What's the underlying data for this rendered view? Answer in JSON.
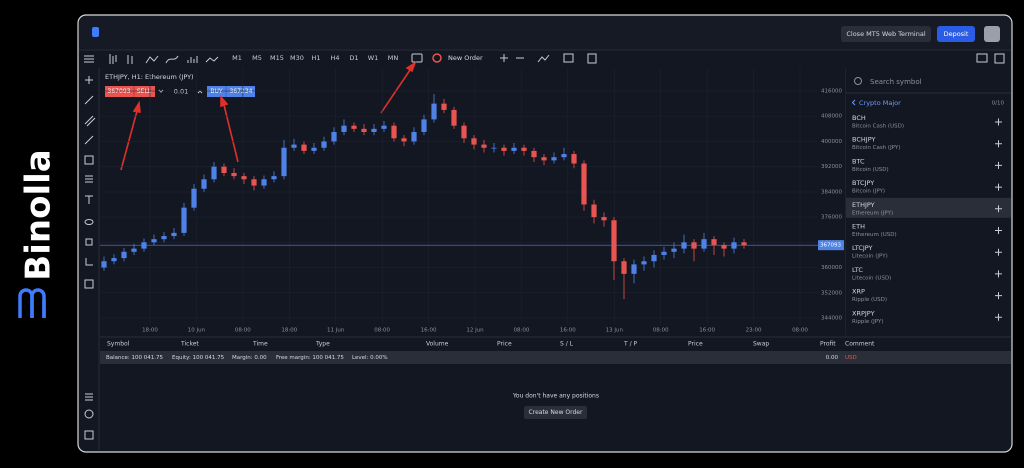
{
  "brand": "Binolla",
  "topbar": {
    "close_button": "Close MT5 Web Terminal",
    "deposit_button": "Deposit"
  },
  "toolbar": {
    "timeframes": [
      "M1",
      "M5",
      "M15",
      "M30",
      "H1",
      "H4",
      "D1",
      "W1",
      "MN"
    ],
    "new_order": "New Order"
  },
  "chart": {
    "type": "candlestick",
    "title": "ETHJPY, H1: Ethereum (JPY)",
    "bid": 367093,
    "ask": 367234,
    "sell_label": "SELL",
    "buy_label": "BUY",
    "volume": 0.01,
    "up_color": "#4f82e6",
    "down_color": "#ea5450",
    "ylim": [
      340000,
      420000
    ],
    "yticks": [
      344000,
      352000,
      360000,
      368000,
      376000,
      384000,
      392000,
      400000,
      408000,
      416000
    ],
    "x_labels": [
      "18:00",
      "10 Jun",
      "08:00",
      "18:00",
      "11 Jun",
      "08:00",
      "16:00",
      "12 Jun",
      "08:00",
      "16:00",
      "13 Jun",
      "08:00",
      "16:00",
      "23:00",
      "08:00"
    ],
    "grid": true,
    "candles": [
      [
        360000,
        363500,
        359000,
        362000
      ],
      [
        362000,
        364200,
        361000,
        363000
      ],
      [
        363000,
        366200,
        362000,
        365000
      ],
      [
        365000,
        367500,
        364000,
        366000
      ],
      [
        366000,
        369200,
        365000,
        368000
      ],
      [
        368000,
        370500,
        367000,
        369000
      ],
      [
        369000,
        371200,
        368000,
        370000
      ],
      [
        370000,
        372500,
        369000,
        371000
      ],
      [
        371000,
        380500,
        370000,
        379000
      ],
      [
        379000,
        386500,
        378000,
        385000
      ],
      [
        385000,
        389500,
        384000,
        388000
      ],
      [
        388000,
        393500,
        387000,
        392000
      ],
      [
        392000,
        393000,
        389000,
        390000
      ],
      [
        390000,
        391500,
        388000,
        389000
      ],
      [
        389000,
        390000,
        386500,
        388000
      ],
      [
        388000,
        389000,
        384500,
        386000
      ],
      [
        386000,
        389200,
        385000,
        388000
      ],
      [
        388000,
        390500,
        387000,
        389000
      ],
      [
        389000,
        400500,
        388000,
        398000
      ],
      [
        398000,
        400800,
        397000,
        399000
      ],
      [
        399000,
        400000,
        396000,
        397000
      ],
      [
        397000,
        399500,
        396000,
        398000
      ],
      [
        398000,
        401500,
        397000,
        400000
      ],
      [
        400000,
        404500,
        399000,
        403000
      ],
      [
        403000,
        407000,
        402000,
        405000
      ],
      [
        405000,
        406000,
        403000,
        404000
      ],
      [
        404000,
        405500,
        402000,
        403000
      ],
      [
        403000,
        405500,
        402000,
        404000
      ],
      [
        404000,
        406500,
        403000,
        405000
      ],
      [
        405000,
        406000,
        400000,
        401000
      ],
      [
        401000,
        402000,
        398500,
        400000
      ],
      [
        400000,
        404500,
        399000,
        403000
      ],
      [
        403000,
        408500,
        402000,
        407000
      ],
      [
        407000,
        415000,
        406000,
        412000
      ],
      [
        412000,
        413500,
        409000,
        410000
      ],
      [
        410000,
        411000,
        404000,
        405000
      ],
      [
        405000,
        406000,
        399500,
        401000
      ],
      [
        401000,
        402000,
        397500,
        399000
      ],
      [
        399000,
        400500,
        396500,
        398000
      ],
      [
        398000,
        399500,
        396500,
        398000
      ],
      [
        398000,
        399000,
        395500,
        397000
      ],
      [
        397000,
        399500,
        396000,
        398000
      ],
      [
        398000,
        399000,
        395500,
        397000
      ],
      [
        397000,
        398000,
        393500,
        395000
      ],
      [
        395000,
        396000,
        392500,
        394000
      ],
      [
        394000,
        396500,
        393000,
        395000
      ],
      [
        395000,
        398000,
        394000,
        396000
      ],
      [
        396000,
        397000,
        391500,
        393000
      ],
      [
        393000,
        394000,
        378000,
        380000
      ],
      [
        380000,
        381500,
        374000,
        376000
      ],
      [
        376000,
        377500,
        373000,
        375000
      ],
      [
        375000,
        376000,
        356000,
        362000
      ],
      [
        362000,
        363000,
        350000,
        358000
      ],
      [
        358000,
        362500,
        355000,
        361000
      ],
      [
        361000,
        363500,
        359000,
        362000
      ],
      [
        362000,
        365500,
        360000,
        364000
      ],
      [
        364000,
        366500,
        362500,
        365000
      ],
      [
        365000,
        368000,
        363000,
        366000
      ],
      [
        366000,
        370500,
        364500,
        368000
      ],
      [
        368000,
        369000,
        362000,
        366000
      ],
      [
        366000,
        371000,
        365000,
        369000
      ],
      [
        369000,
        370000,
        364000,
        367000
      ],
      [
        367000,
        368000,
        363500,
        366000
      ],
      [
        366000,
        369500,
        364500,
        368000
      ],
      [
        368000,
        369000,
        366000,
        367093
      ]
    ]
  },
  "symbols": {
    "search_placeholder": "Search symbol",
    "group": "Crypto Major",
    "count": "0/10",
    "items": [
      {
        "symbol": "BCH",
        "description": "Bitcoin Cash (USD)"
      },
      {
        "symbol": "BCHJPY",
        "description": "Bitcoin Cash (JPY)"
      },
      {
        "symbol": "BTC",
        "description": "Bitcoin (USD)"
      },
      {
        "symbol": "BTCJPY",
        "description": "Bitcoin (JPY)"
      },
      {
        "symbol": "ETHJPY",
        "description": "Ethereum (JPY)"
      },
      {
        "symbol": "ETH",
        "description": "Ethereum (USD)"
      },
      {
        "symbol": "LTCJPY",
        "description": "Litecoin (JPY)"
      },
      {
        "symbol": "LTC",
        "description": "Litecoin (USD)"
      },
      {
        "symbol": "XRP",
        "description": "Ripple (USD)"
      },
      {
        "symbol": "XRPJPY",
        "description": "Ripple (JPY)"
      }
    ]
  },
  "positions": {
    "columns": [
      "Symbol",
      "Ticket",
      "Time",
      "Type",
      "Volume",
      "Price",
      "S / L",
      "T / P",
      "Price",
      "Swap",
      "Profit",
      "Comment"
    ],
    "balance": "Balance: 100 041.75",
    "equity": "Equity: 100 041.75",
    "margin": "Margin: 0.00",
    "free_margin": "Free margin: 100 041.75",
    "level": "Level: 0.00%",
    "profit": "0.00",
    "currency": "USD",
    "empty": "You don't have any positions",
    "create_button": "Create New Order"
  }
}
